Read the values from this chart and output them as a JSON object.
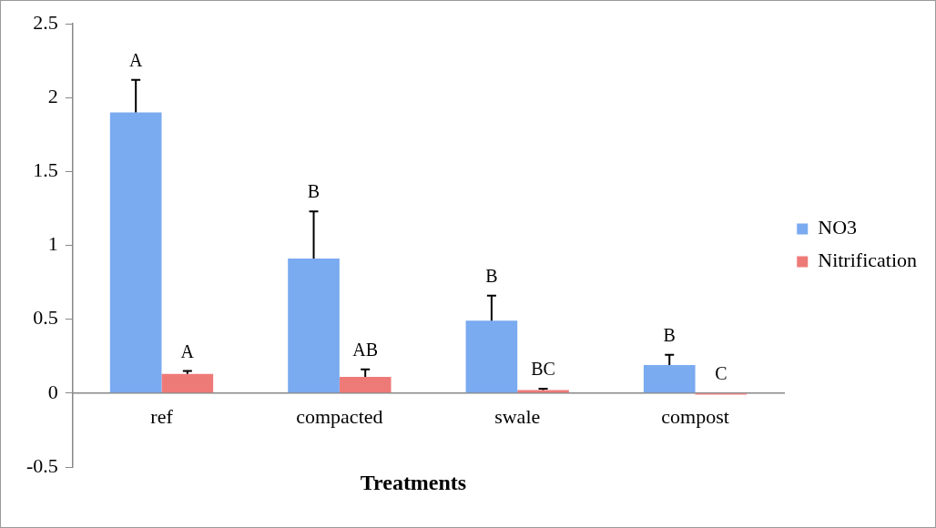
{
  "chart_data": {
    "type": "bar",
    "xlabel": "Treatments",
    "categories": [
      "ref",
      "compacted",
      "swale",
      "compost"
    ],
    "series": [
      {
        "name": "NO3",
        "color": "#7aaaf0",
        "values": [
          1.9,
          0.91,
          0.49,
          0.19
        ],
        "errors": [
          [
            1.9,
            2.12
          ],
          [
            0.91,
            1.23
          ],
          [
            0.49,
            0.66
          ],
          [
            0.19,
            0.26
          ]
        ],
        "value_labels": [
          "A",
          "B",
          "B",
          "B"
        ]
      },
      {
        "name": "Nitrification",
        "color": "#ee7a78",
        "values": [
          0.13,
          0.11,
          0.02,
          -0.01
        ],
        "errors": [
          [
            0.13,
            0.15
          ],
          [
            0.11,
            0.16
          ],
          [
            0.02,
            0.03
          ],
          null
        ],
        "value_labels": [
          "A",
          "AB",
          "BC",
          "C"
        ]
      }
    ],
    "ylim": [
      -0.5,
      2.5
    ],
    "yticks": [
      -0.5,
      0,
      0.5,
      1,
      1.5,
      2,
      2.5
    ],
    "grid": false,
    "legend": "right"
  }
}
